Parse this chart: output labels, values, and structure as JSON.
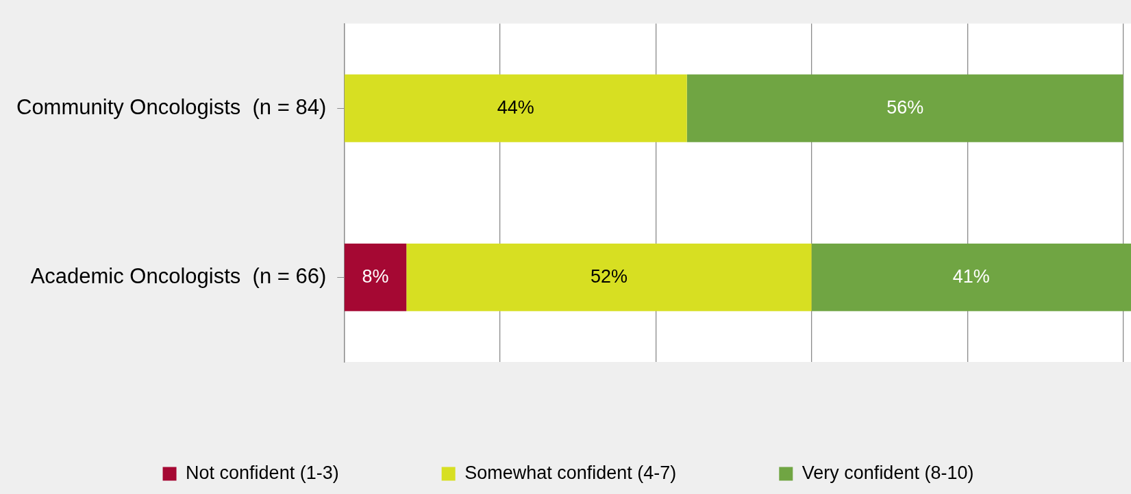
{
  "chart_data": {
    "type": "bar",
    "orientation": "horizontal",
    "stacked": true,
    "categories": [
      "Community Oncologists  (n = 84)",
      "Academic Oncologists  (n = 66)"
    ],
    "series": [
      {
        "name": "Not confident (1-3)",
        "color": "#a50833",
        "values": [
          null,
          8
        ],
        "value_labels": [
          null,
          "8%"
        ]
      },
      {
        "name": "Somewhat confident (4-7)",
        "color": "#d7df22",
        "values": [
          44,
          52
        ],
        "value_labels": [
          "44%",
          "52%"
        ]
      },
      {
        "name": "Very confident (8-10)",
        "color": "#70a543",
        "values": [
          56,
          41
        ],
        "value_labels": [
          "56%",
          "41%"
        ]
      }
    ],
    "xlim": [
      0,
      101
    ],
    "xticks": [
      {
        "value": 0,
        "label": null
      },
      {
        "value": 20,
        "label": null
      },
      {
        "value": 40,
        "label": null
      },
      {
        "value": 60,
        "label": null
      },
      {
        "value": 80,
        "label": null
      },
      {
        "value": 100,
        "label": null
      }
    ],
    "grid": "x",
    "legend": "bottom",
    "tick_labels": "y"
  }
}
